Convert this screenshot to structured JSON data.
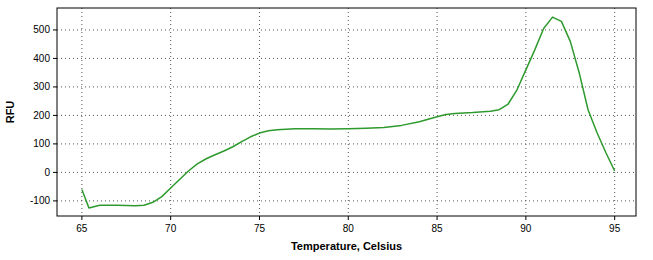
{
  "chart_data": {
    "type": "line",
    "x_label": "Temperature, Celsius",
    "y_label": "RFU",
    "x": [
      65,
      65.4,
      66,
      67,
      68,
      68.5,
      69,
      69.5,
      70,
      70.5,
      71,
      71.5,
      72,
      72.5,
      73,
      73.5,
      74,
      74.5,
      75,
      75.5,
      76,
      77,
      78,
      79,
      80,
      81,
      82,
      83,
      84,
      85,
      85.5,
      86,
      87,
      88,
      88.5,
      89,
      89.5,
      90,
      90.5,
      91,
      91.5,
      92,
      92.5,
      93,
      93.5,
      94,
      94.5,
      95
    ],
    "values": [
      -60,
      -125,
      -115,
      -115,
      -117,
      -115,
      -105,
      -85,
      -55,
      -25,
      5,
      30,
      48,
      62,
      75,
      90,
      108,
      125,
      138,
      146,
      150,
      153,
      153,
      152,
      153,
      155,
      158,
      165,
      178,
      195,
      203,
      207,
      210,
      215,
      220,
      240,
      290,
      360,
      430,
      505,
      545,
      530,
      460,
      350,
      220,
      140,
      70,
      5
    ],
    "color": "#2e9a2e",
    "xlim": [
      63.6,
      96.2
    ],
    "ylim": [
      -153,
      577
    ],
    "xticks": [
      65,
      70,
      75,
      80,
      85,
      90,
      95
    ],
    "yticks": [
      -100,
      0,
      100,
      200,
      300,
      400,
      500
    ],
    "grid": true
  }
}
